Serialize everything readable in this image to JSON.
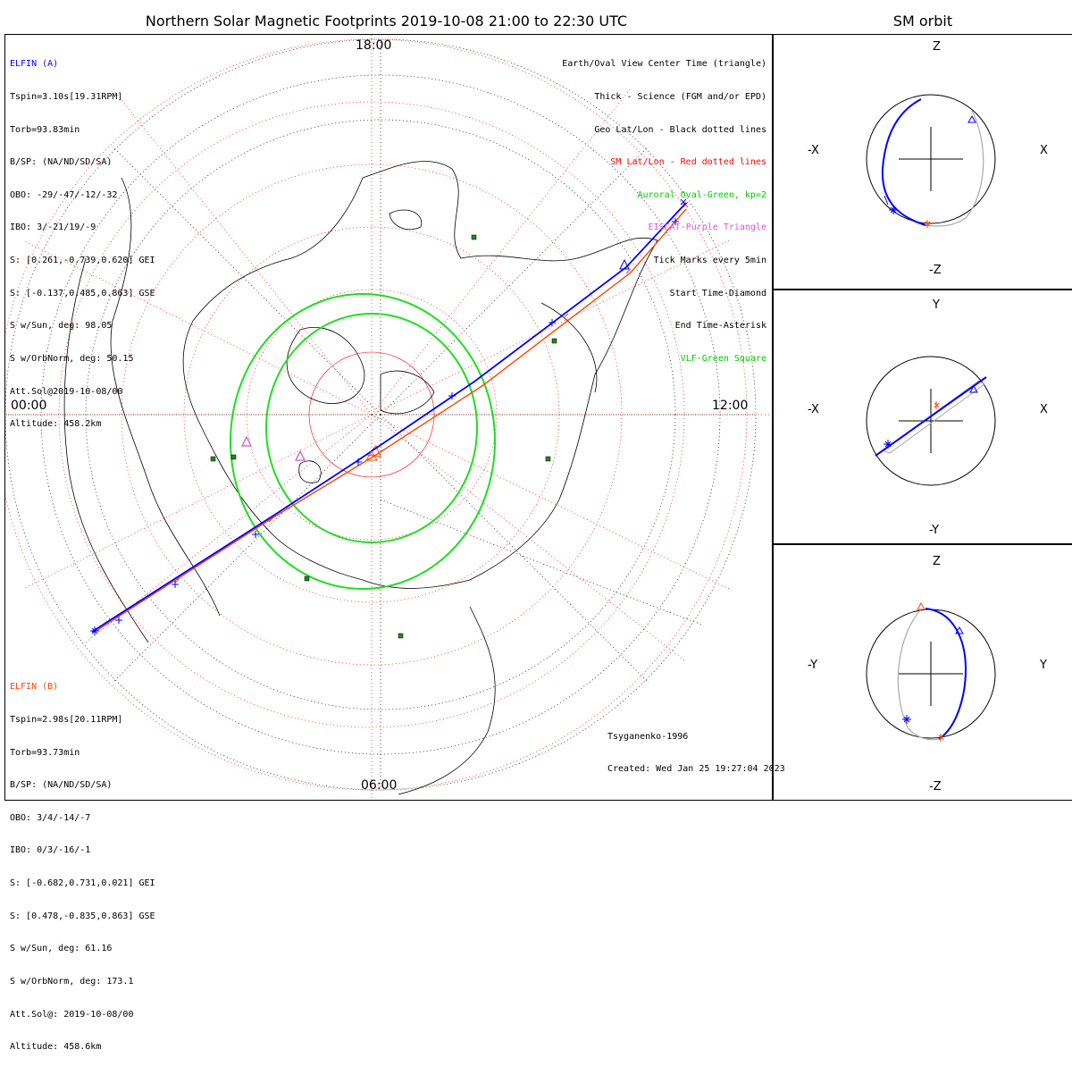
{
  "title": "Northern Solar Magnetic Footprints 2019-10-08 21:00 to 22:30 UTC",
  "sm_orbit_title": "SM orbit",
  "hour_labels": {
    "top": "18:00",
    "left": "00:00",
    "right": "12:00",
    "bottom": "06:00"
  },
  "elfin_a": {
    "name": "ELFIN (A)",
    "color": "#0000ff",
    "lines": [
      "Tspin=3.10s[19.31RPM]",
      "Torb=93.83min",
      "B/SP: (NA/ND/SD/SA)",
      "OBO: -29/-47/-12/-32",
      "IBO: 3/-21/19/-9",
      "S: [0.261,-0.739,0.620] GEI",
      "S: [-0.137,0.485,0.863] GSE",
      "S w/Sun, deg: 98.05",
      "S w/OrbNorm, deg: 50.15",
      "Att.Sol@2019-10-08/00",
      "Altitude: 458.2km"
    ]
  },
  "elfin_b": {
    "name": "ELFIN (B)",
    "color": "#ff4500",
    "lines": [
      "Tspin=2.98s[20.11RPM]",
      "Torb=93.73min",
      "B/SP: (NA/ND/SD/SA)",
      "OBO: 3/4/-14/-7",
      "IBO: 0/3/-16/-1",
      "S: [-0.682,0.731,0.021] GEI",
      "S: [0.478,-0.835,0.863] GSE",
      "S w/Sun, deg: 61.16",
      "S w/OrbNorm, deg: 173.1",
      "Att.Sol@: 2019-10-08/00",
      "Altitude: 458.6km"
    ]
  },
  "legend": [
    {
      "text": "Earth/Oval View Center Time (triangle)",
      "color": "#000000"
    },
    {
      "text": "Thick - Science (FGM and/or EPD)",
      "color": "#000000"
    },
    {
      "text": "Geo Lat/Lon - Black dotted lines",
      "color": "#000000"
    },
    {
      "text": "SM Lat/Lon - Red dotted lines",
      "color": "#ff0000"
    },
    {
      "text": "Auroral Oval-Green, kp=2",
      "color": "#00cc00"
    },
    {
      "text": "EISCAT-Purple Triangle",
      "color": "#dd55dd"
    },
    {
      "text": "Tick Marks every 5min",
      "color": "#000000"
    },
    {
      "text": "Start Time-Diamond",
      "color": "#000000"
    },
    {
      "text": "End Time-Asterisk",
      "color": "#000000"
    },
    {
      "text": "VLF-Green Square",
      "color": "#00cc00"
    }
  ],
  "credit": {
    "model": "Tsyganenko-1996",
    "created": "Created: Wed Jan 25 19:27:04 2023"
  },
  "orbit_panels": [
    {
      "top_label": "Z",
      "bottom_label": "-Z",
      "left_label": "-X",
      "right_label": "X"
    },
    {
      "top_label": "Y",
      "bottom_label": "-Y",
      "left_label": "-X",
      "right_label": "X"
    },
    {
      "top_label": "Z",
      "bottom_label": "-Z",
      "left_label": "-Y",
      "right_label": "Y"
    }
  ],
  "colors": {
    "elfin_a": "#0000ff",
    "elfin_b": "#ff4500",
    "oval": "#22dd22",
    "sm_grid": "#ff0000",
    "geo_grid": "#000000",
    "vlf": "#228822",
    "eiscat": "#cc55cc",
    "orbit_gray": "#aaaaaa"
  }
}
